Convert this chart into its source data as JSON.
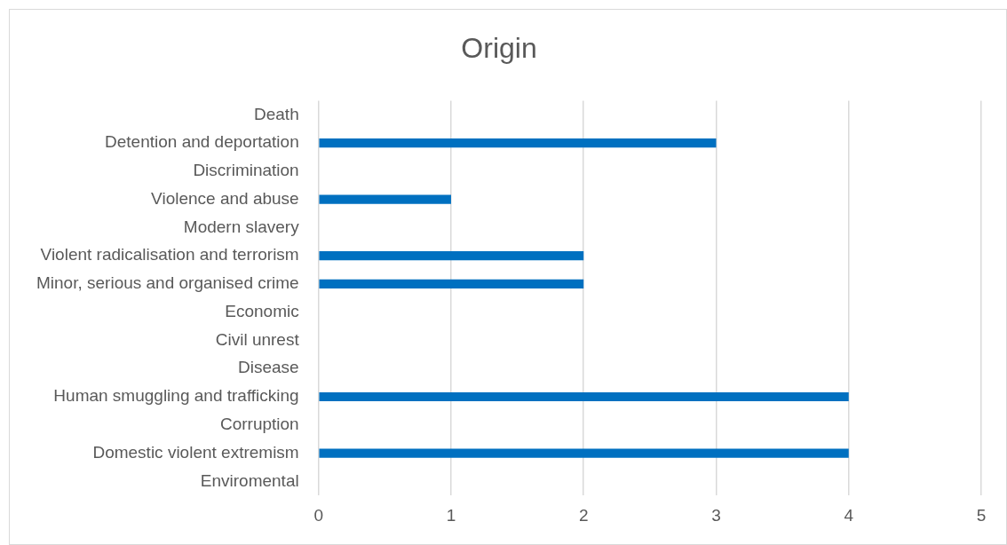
{
  "chart_data": {
    "type": "bar",
    "orientation": "horizontal",
    "title": "Origin",
    "categories": [
      "Death",
      "Detention and deportation",
      "Discrimination",
      "Violence and abuse",
      "Modern slavery",
      "Violent radicalisation and terrorism",
      "Minor, serious and organised crime",
      "Economic",
      "Civil unrest",
      "Disease",
      "Human smuggling and trafficking",
      "Corruption",
      "Domestic violent extremism",
      "Enviromental"
    ],
    "values": [
      0,
      3,
      0,
      1,
      0,
      2,
      2,
      0,
      0,
      0,
      4,
      0,
      4,
      0
    ],
    "color": "#0070c0",
    "xlim": [
      0,
      5
    ],
    "xticks": [
      0,
      1,
      2,
      3,
      4,
      5
    ],
    "grid": "x",
    "legend": false
  }
}
